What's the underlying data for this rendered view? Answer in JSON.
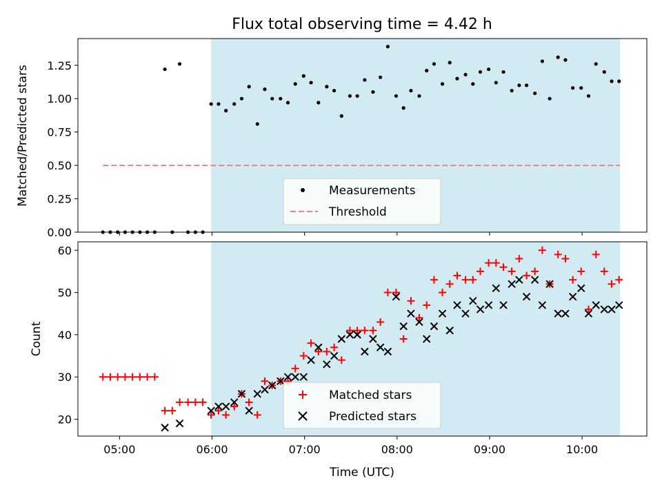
{
  "chart_data": [
    {
      "type": "scatter",
      "title": "Flux total observing time = 4.42 h",
      "ylabel": "Matched/Predicted stars",
      "xlabel": "",
      "xlim": [
        4.55,
        10.7
      ],
      "ylim": [
        0,
        1.45
      ],
      "yticks": [
        0,
        0.25,
        0.5,
        0.75,
        1.0,
        1.25
      ],
      "ytick_labels": [
        "0.00",
        "0.25",
        "0.50",
        "0.75",
        "1.00",
        "1.25",
        ""
      ],
      "highlight_range": [
        5.99,
        10.41
      ],
      "threshold": {
        "value": 0.5,
        "x_range": [
          4.82,
          10.41
        ],
        "color": "#f08080"
      },
      "legend": {
        "position": "lower-center",
        "entries": [
          "Measurements",
          "Threshold"
        ]
      },
      "series": [
        {
          "name": "Measurements",
          "color": "#000000",
          "x": [
            4.82,
            4.9,
            4.98,
            5.06,
            5.14,
            5.22,
            5.3,
            5.38,
            5.49,
            5.57,
            5.65,
            5.74,
            5.82,
            5.9,
            5.99,
            6.07,
            6.15,
            6.24,
            6.32,
            6.4,
            6.49,
            6.57,
            6.65,
            6.74,
            6.82,
            6.9,
            6.99,
            7.07,
            7.15,
            7.24,
            7.32,
            7.4,
            7.49,
            7.57,
            7.65,
            7.74,
            7.82,
            7.9,
            7.99,
            8.07,
            8.15,
            8.24,
            8.32,
            8.4,
            8.49,
            8.57,
            8.65,
            8.74,
            8.82,
            8.9,
            8.99,
            9.07,
            9.15,
            9.24,
            9.32,
            9.4,
            9.49,
            9.57,
            9.65,
            9.74,
            9.82,
            9.9,
            9.99,
            10.07,
            10.15,
            10.24,
            10.32,
            10.4
          ],
          "y": [
            0,
            0,
            0,
            0,
            0,
            0,
            0,
            0,
            1.22,
            0,
            1.26,
            0,
            0,
            0,
            0.96,
            0.96,
            0.91,
            0.96,
            1.0,
            1.09,
            0.81,
            1.07,
            1.0,
            1.0,
            0.97,
            1.11,
            1.17,
            1.12,
            0.97,
            1.09,
            1.06,
            0.87,
            1.02,
            1.02,
            1.14,
            1.05,
            1.16,
            1.39,
            1.02,
            0.93,
            1.06,
            1.02,
            1.21,
            1.26,
            1.11,
            1.27,
            1.15,
            1.18,
            1.11,
            1.2,
            1.22,
            1.12,
            1.2,
            1.06,
            1.1,
            1.1,
            1.04,
            1.28,
            1.0,
            1.31,
            1.29,
            1.08,
            1.08,
            1.02,
            1.26,
            1.2,
            1.13,
            1.13
          ]
        }
      ],
      "x_tick_labels": [
        "05:00",
        "06:00",
        "07:00",
        "08:00",
        "09:00",
        "10:00"
      ]
    },
    {
      "type": "scatter",
      "title": "",
      "xlabel": "Time (UTC)",
      "ylabel": "Count",
      "xlim": [
        4.55,
        10.7
      ],
      "ylim": [
        16,
        62
      ],
      "yticks": [
        20,
        30,
        40,
        50,
        60
      ],
      "ytick_labels": [
        "20",
        "30",
        "40",
        "50",
        "60"
      ],
      "x_ticks": [
        5,
        6,
        7,
        8,
        9,
        10
      ],
      "x_tick_labels": [
        "05:00",
        "06:00",
        "07:00",
        "08:00",
        "09:00",
        "10:00"
      ],
      "highlight_range": [
        5.99,
        10.41
      ],
      "legend": {
        "position": "lower-center",
        "entries": [
          "Matched stars",
          "Predicted stars"
        ]
      },
      "series": [
        {
          "name": "Matched stars",
          "marker": "plus",
          "color": "#ff0000",
          "x": [
            4.82,
            4.9,
            4.98,
            5.06,
            5.14,
            5.22,
            5.3,
            5.38,
            5.49,
            5.57,
            5.65,
            5.74,
            5.82,
            5.9,
            5.99,
            6.07,
            6.15,
            6.24,
            6.32,
            6.4,
            6.49,
            6.57,
            6.65,
            6.74,
            6.82,
            6.9,
            6.99,
            7.07,
            7.15,
            7.24,
            7.32,
            7.4,
            7.49,
            7.57,
            7.65,
            7.74,
            7.82,
            7.9,
            7.99,
            8.07,
            8.15,
            8.24,
            8.32,
            8.4,
            8.49,
            8.57,
            8.65,
            8.74,
            8.82,
            8.9,
            8.99,
            9.07,
            9.15,
            9.24,
            9.32,
            9.4,
            9.49,
            9.57,
            9.65,
            9.74,
            9.82,
            9.9,
            9.99,
            10.07,
            10.15,
            10.24,
            10.32,
            10.4
          ],
          "y": [
            30,
            30,
            30,
            30,
            30,
            30,
            30,
            30,
            22,
            22,
            24,
            24,
            24,
            24,
            21,
            22,
            21,
            23,
            26,
            24,
            21,
            29,
            28,
            29,
            29,
            32,
            35,
            38,
            36,
            36,
            37,
            34,
            41,
            41,
            41,
            41,
            43,
            50,
            50,
            39,
            48,
            44,
            47,
            53,
            50,
            52,
            54,
            53,
            53,
            55,
            57,
            57,
            56,
            55,
            58,
            54,
            55,
            60,
            52,
            59,
            58,
            53,
            55,
            46,
            59,
            55,
            52,
            53
          ]
        },
        {
          "name": "Predicted stars",
          "marker": "x",
          "color": "#000000",
          "x": [
            5.49,
            5.65,
            5.99,
            6.07,
            6.15,
            6.24,
            6.32,
            6.4,
            6.49,
            6.57,
            6.65,
            6.74,
            6.82,
            6.9,
            6.99,
            7.07,
            7.15,
            7.24,
            7.32,
            7.4,
            7.49,
            7.57,
            7.65,
            7.74,
            7.82,
            7.9,
            7.99,
            8.07,
            8.15,
            8.24,
            8.32,
            8.4,
            8.49,
            8.57,
            8.65,
            8.74,
            8.82,
            8.9,
            8.99,
            9.07,
            9.15,
            9.24,
            9.32,
            9.4,
            9.49,
            9.57,
            9.65,
            9.74,
            9.82,
            9.9,
            9.99,
            10.07,
            10.15,
            10.24,
            10.32,
            10.4
          ],
          "y": [
            18,
            19,
            22,
            23,
            23,
            24,
            26,
            22,
            26,
            27,
            28,
            29,
            30,
            30,
            30,
            34,
            37,
            33,
            35,
            39,
            40,
            40,
            36,
            39,
            37,
            36,
            49,
            42,
            45,
            43,
            39,
            42,
            45,
            41,
            47,
            45,
            48,
            46,
            47,
            51,
            47,
            52,
            53,
            49,
            53,
            47,
            52,
            45,
            45,
            49,
            51,
            45,
            47,
            46,
            46,
            47
          ]
        }
      ]
    }
  ]
}
